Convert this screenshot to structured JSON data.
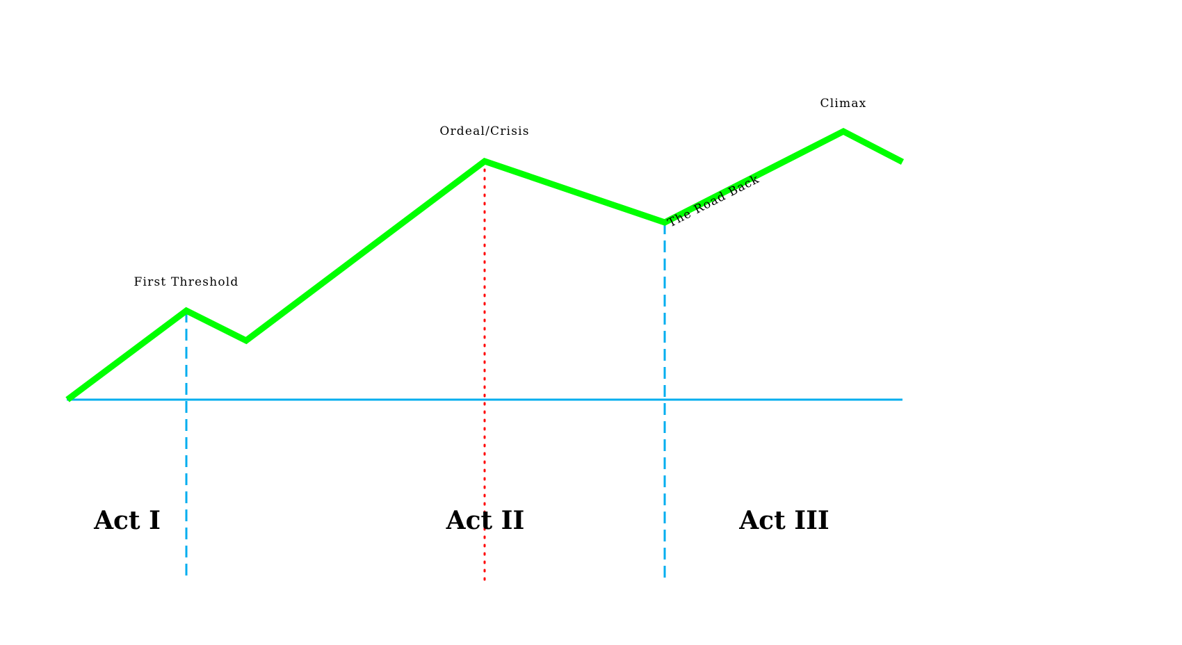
{
  "colors": {
    "plot_line": "#00ff00",
    "baseline": "#00aeef",
    "act_divider": "#00aeef",
    "crisis_marker": "#ff0000",
    "text": "#000000"
  },
  "beats": {
    "first_threshold": "First Threshold",
    "ordeal_crisis": "Ordeal/Crisis",
    "road_back": "The Road Back",
    "climax": "Climax"
  },
  "acts": {
    "act1": "Act I",
    "act2": "Act II",
    "act3": "Act III"
  }
}
